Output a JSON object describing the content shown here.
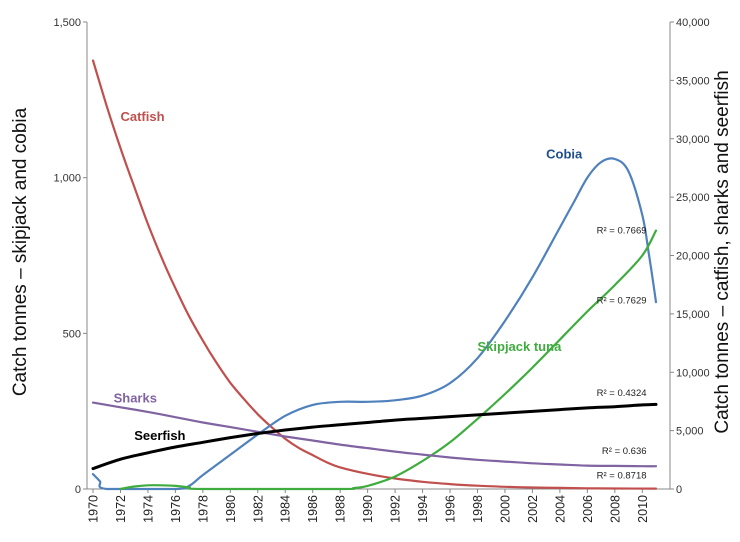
{
  "chart_data": {
    "type": "line",
    "x": [
      1970,
      1972,
      1974,
      1976,
      1978,
      1980,
      1982,
      1984,
      1986,
      1988,
      1990,
      1992,
      1994,
      1996,
      1998,
      2000,
      2002,
      2004,
      2006,
      2008,
      2010
    ],
    "xlim": [
      1970,
      2011
    ],
    "left_axis": {
      "label": "Catch tonnes – skipjack and cobia",
      "range": [
        0,
        1500
      ],
      "ticks": [
        0,
        500,
        1000,
        1500
      ],
      "tick_labels": [
        "0",
        "500",
        "1,000",
        "1,500"
      ]
    },
    "right_axis": {
      "label": "Catch tonnes – catfish, sharks and seerfish",
      "range": [
        0,
        40000
      ],
      "ticks": [
        0,
        5000,
        10000,
        15000,
        20000,
        25000,
        30000,
        35000,
        40000
      ],
      "tick_labels": [
        "0",
        "5,000",
        "10,000",
        "15,000",
        "20,000",
        "25,000",
        "30,000",
        "35,000",
        "40,000"
      ]
    },
    "grid": false,
    "series": [
      {
        "name": "Catfish",
        "axis": "right",
        "color": "#c0504d",
        "points": [
          [
            1970,
            36700
          ],
          [
            1971,
            32800
          ],
          [
            1972,
            29200
          ],
          [
            1973,
            25900
          ],
          [
            1974,
            22700
          ],
          [
            1975,
            19800
          ],
          [
            1976,
            17200
          ],
          [
            1977,
            14800
          ],
          [
            1978,
            12700
          ],
          [
            1979,
            10800
          ],
          [
            1980,
            9100
          ],
          [
            1981,
            7700
          ],
          [
            1982,
            6400
          ],
          [
            1983,
            5300
          ],
          [
            1984,
            4300
          ],
          [
            1985,
            3500
          ],
          [
            1986,
            2900
          ],
          [
            1987,
            2300
          ],
          [
            1988,
            1850
          ],
          [
            1990,
            1300
          ],
          [
            1992,
            900
          ],
          [
            1994,
            620
          ],
          [
            1996,
            420
          ],
          [
            1998,
            280
          ],
          [
            2000,
            190
          ],
          [
            2002,
            130
          ],
          [
            2004,
            90
          ],
          [
            2006,
            60
          ],
          [
            2008,
            40
          ],
          [
            2011,
            30
          ]
        ]
      },
      {
        "name": "Cobia",
        "axis": "left",
        "color": "#4f81bd",
        "points": [
          [
            1970,
            48
          ],
          [
            1970.5,
            25
          ],
          [
            1971,
            0
          ],
          [
            1976,
            0
          ],
          [
            1977,
            10
          ],
          [
            1978,
            45
          ],
          [
            1980,
            110
          ],
          [
            1982,
            175
          ],
          [
            1984,
            235
          ],
          [
            1986,
            270
          ],
          [
            1988,
            280
          ],
          [
            1990,
            280
          ],
          [
            1992,
            285
          ],
          [
            1994,
            300
          ],
          [
            1996,
            340
          ],
          [
            1998,
            420
          ],
          [
            2000,
            540
          ],
          [
            2002,
            680
          ],
          [
            2004,
            840
          ],
          [
            2005,
            920
          ],
          [
            2006,
            1000
          ],
          [
            2007,
            1050
          ],
          [
            2008,
            1060
          ],
          [
            2009,
            1020
          ],
          [
            2010,
            880
          ],
          [
            2010.5,
            750
          ],
          [
            2011,
            600
          ]
        ]
      },
      {
        "name": "Skipjack tuna",
        "axis": "left",
        "color": "#3fac3f",
        "points": [
          [
            1972,
            0
          ],
          [
            1973,
            8
          ],
          [
            1974,
            12
          ],
          [
            1975,
            12
          ],
          [
            1976,
            10
          ],
          [
            1977,
            5
          ],
          [
            1978,
            0
          ],
          [
            1988,
            0
          ],
          [
            1989,
            3
          ],
          [
            1990,
            10
          ],
          [
            1992,
            40
          ],
          [
            1994,
            90
          ],
          [
            1996,
            150
          ],
          [
            1998,
            225
          ],
          [
            2000,
            305
          ],
          [
            2002,
            390
          ],
          [
            2004,
            480
          ],
          [
            2006,
            570
          ],
          [
            2008,
            655
          ],
          [
            2010,
            750
          ],
          [
            2011,
            830
          ]
        ]
      },
      {
        "name": "Sharks",
        "axis": "right",
        "color": "#8064a2",
        "points": [
          [
            1970,
            7400
          ],
          [
            1972,
            7000
          ],
          [
            1974,
            6600
          ],
          [
            1976,
            6150
          ],
          [
            1978,
            5700
          ],
          [
            1980,
            5300
          ],
          [
            1982,
            4900
          ],
          [
            1984,
            4500
          ],
          [
            1986,
            4150
          ],
          [
            1988,
            3800
          ],
          [
            1990,
            3500
          ],
          [
            1992,
            3200
          ],
          [
            1994,
            2950
          ],
          [
            1996,
            2700
          ],
          [
            1998,
            2500
          ],
          [
            2000,
            2350
          ],
          [
            2002,
            2200
          ],
          [
            2004,
            2100
          ],
          [
            2006,
            2000
          ],
          [
            2008,
            1980
          ],
          [
            2010,
            1950
          ],
          [
            2011,
            1950
          ]
        ]
      },
      {
        "name": "Seerfish",
        "axis": "right",
        "color": "#000000",
        "points": [
          [
            1970,
            1750
          ],
          [
            1972,
            2550
          ],
          [
            1974,
            3100
          ],
          [
            1976,
            3600
          ],
          [
            1978,
            4000
          ],
          [
            1980,
            4400
          ],
          [
            1982,
            4750
          ],
          [
            1984,
            5050
          ],
          [
            1986,
            5300
          ],
          [
            1988,
            5500
          ],
          [
            1990,
            5700
          ],
          [
            1992,
            5900
          ],
          [
            1994,
            6050
          ],
          [
            1996,
            6200
          ],
          [
            1998,
            6350
          ],
          [
            2000,
            6500
          ],
          [
            2002,
            6650
          ],
          [
            2004,
            6800
          ],
          [
            2006,
            6950
          ],
          [
            2008,
            7050
          ],
          [
            2010,
            7200
          ],
          [
            2011,
            7250
          ]
        ]
      }
    ],
    "annotations": [
      {
        "text": "R² = 0.7669",
        "year": 2009,
        "value": 21900
      },
      {
        "text": "R² = 0.7629",
        "year": 2009,
        "value": 15900
      },
      {
        "text": "R² = 0.4324",
        "year": 2009,
        "value": 7950
      },
      {
        "text": "R² = 0.636",
        "year": 2009,
        "value": 3000
      },
      {
        "text": "R² = 0.8718",
        "year": 2009,
        "value": 900
      }
    ],
    "labels": [
      {
        "text": "Catfish",
        "year": 1972,
        "value": 31500,
        "color": "#c0504d"
      },
      {
        "text": "Cobia",
        "year": 2003,
        "value": 28300,
        "color": "#1f4e8c"
      },
      {
        "text": "Skipjack tuna",
        "year": 1998,
        "value": 11800,
        "color": "#3fac3f"
      },
      {
        "text": "Sharks",
        "year": 1971.5,
        "value": 7400,
        "color": "#8064a2"
      },
      {
        "text": "Seerfish",
        "year": 1973,
        "value": 4200,
        "color": "#000000"
      }
    ]
  }
}
